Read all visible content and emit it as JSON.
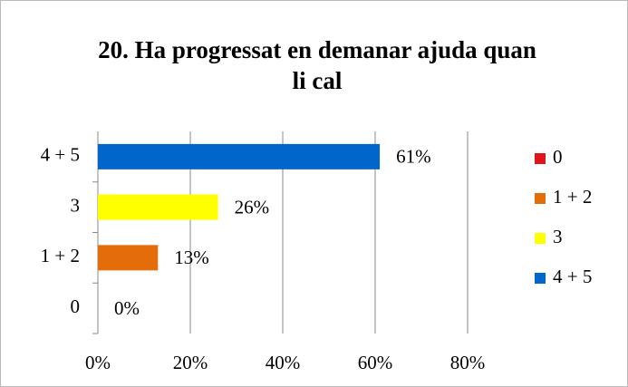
{
  "chart_data": {
    "type": "bar",
    "orientation": "horizontal",
    "title": "20. Ha progressat en demanar ajuda quan li cal",
    "categories": [
      "0",
      "1 + 2",
      "3",
      "4 + 5"
    ],
    "values": [
      0,
      13,
      26,
      61
    ],
    "value_labels": [
      "0%",
      "13%",
      "26%",
      "61%"
    ],
    "colors": [
      "#e0141b",
      "#e46c0a",
      "#ffff00",
      "#0066cc"
    ],
    "xlim": [
      0,
      80
    ],
    "xticks": [
      {
        "value": 0,
        "label": "0%"
      },
      {
        "value": 20,
        "label": "20%"
      },
      {
        "value": 40,
        "label": "40%"
      },
      {
        "value": 60,
        "label": "60%"
      },
      {
        "value": 80,
        "label": "80%"
      }
    ],
    "grid": true,
    "legend": "right"
  }
}
